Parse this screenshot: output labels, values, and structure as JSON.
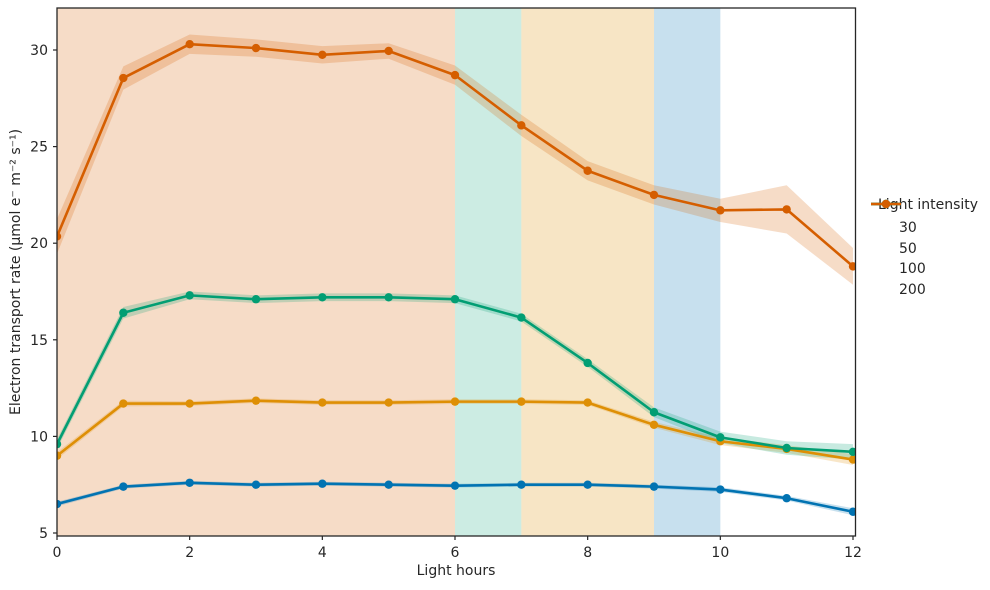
{
  "chart_data": {
    "type": "line",
    "title": "",
    "xlabel": "Light hours",
    "ylabel": "Electron transport rate (µmol e⁻ m⁻² s⁻¹)",
    "xlim": [
      0,
      12
    ],
    "ylim": [
      4.85,
      32.2
    ],
    "xticks": [
      0,
      2,
      4,
      6,
      8,
      10,
      12
    ],
    "xtick_labels": [
      "0",
      "2",
      "4",
      "6",
      "8",
      "10",
      "12"
    ],
    "yticks": [
      5,
      10,
      15,
      20,
      25,
      30
    ],
    "ytick_labels": [
      "5",
      "10",
      "15",
      "20",
      "25",
      "30"
    ],
    "grid": false,
    "x": [
      0,
      1,
      2,
      3,
      4,
      5,
      6,
      7,
      8,
      9,
      10,
      11,
      12
    ],
    "series": [
      {
        "name": "30",
        "color": "#0173b2",
        "values": [
          6.5,
          7.4,
          7.6,
          7.5,
          7.55,
          7.5,
          7.45,
          7.5,
          7.5,
          7.4,
          7.25,
          6.8,
          6.1
        ],
        "ci": [
          0.12,
          0.1,
          0.1,
          0.1,
          0.1,
          0.1,
          0.1,
          0.1,
          0.1,
          0.1,
          0.12,
          0.12,
          0.18
        ]
      },
      {
        "name": "50",
        "color": "#de8f05",
        "values": [
          9.0,
          11.7,
          11.7,
          11.85,
          11.75,
          11.75,
          11.8,
          11.8,
          11.75,
          10.6,
          9.75,
          9.35,
          8.8
        ],
        "ci": [
          0.18,
          0.15,
          0.12,
          0.12,
          0.12,
          0.12,
          0.12,
          0.12,
          0.12,
          0.15,
          0.2,
          0.2,
          0.28
        ]
      },
      {
        "name": "100",
        "color": "#029e73",
        "values": [
          9.6,
          16.4,
          17.3,
          17.1,
          17.2,
          17.2,
          17.1,
          16.15,
          13.8,
          11.25,
          9.95,
          9.4,
          9.2
        ],
        "ci": [
          0.25,
          0.3,
          0.2,
          0.2,
          0.2,
          0.2,
          0.2,
          0.2,
          0.2,
          0.25,
          0.3,
          0.35,
          0.4
        ]
      },
      {
        "name": "200",
        "color": "#d55e00",
        "values": [
          20.35,
          28.55,
          30.3,
          30.1,
          29.75,
          29.95,
          28.7,
          26.1,
          23.75,
          22.5,
          21.7,
          21.75,
          18.8
        ],
        "ci": [
          0.9,
          0.6,
          0.5,
          0.45,
          0.45,
          0.4,
          0.5,
          0.55,
          0.5,
          0.5,
          0.6,
          1.25,
          0.95
        ]
      }
    ],
    "highlight_spans": [
      {
        "from": 0,
        "to": 6,
        "color": "#d55e00",
        "opacity": 0.22
      },
      {
        "from": 6,
        "to": 7,
        "color": "#029e73",
        "opacity": 0.2
      },
      {
        "from": 7,
        "to": 9,
        "color": "#de8f05",
        "opacity": 0.23
      },
      {
        "from": 9,
        "to": 10,
        "color": "#0173b2",
        "opacity": 0.22
      }
    ],
    "legend": {
      "title": "Light intensity",
      "position": "right",
      "entries": [
        "30",
        "50",
        "100",
        "200"
      ]
    },
    "style": {
      "spine_color": "#262626",
      "text_color": "#262626",
      "background": "#ffffff",
      "ci_opacity": 0.22
    }
  }
}
